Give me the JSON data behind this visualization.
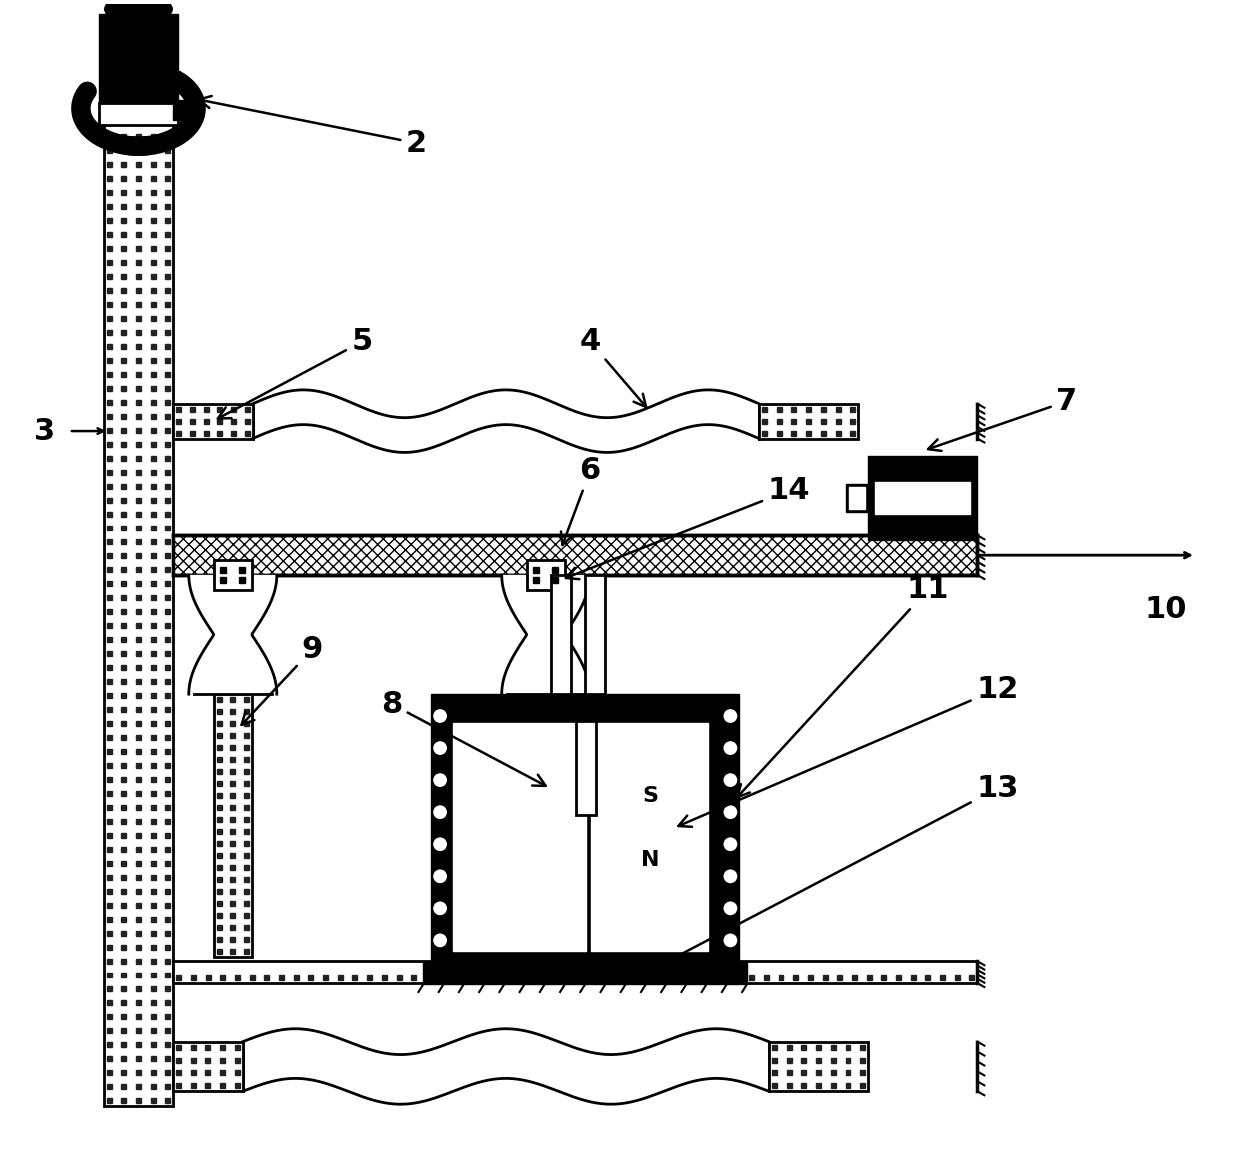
{
  "background": "#ffffff",
  "black": "#000000",
  "white": "#ffffff",
  "figsize": [
    12.4,
    11.6
  ],
  "dpi": 100,
  "lfs": 22
}
